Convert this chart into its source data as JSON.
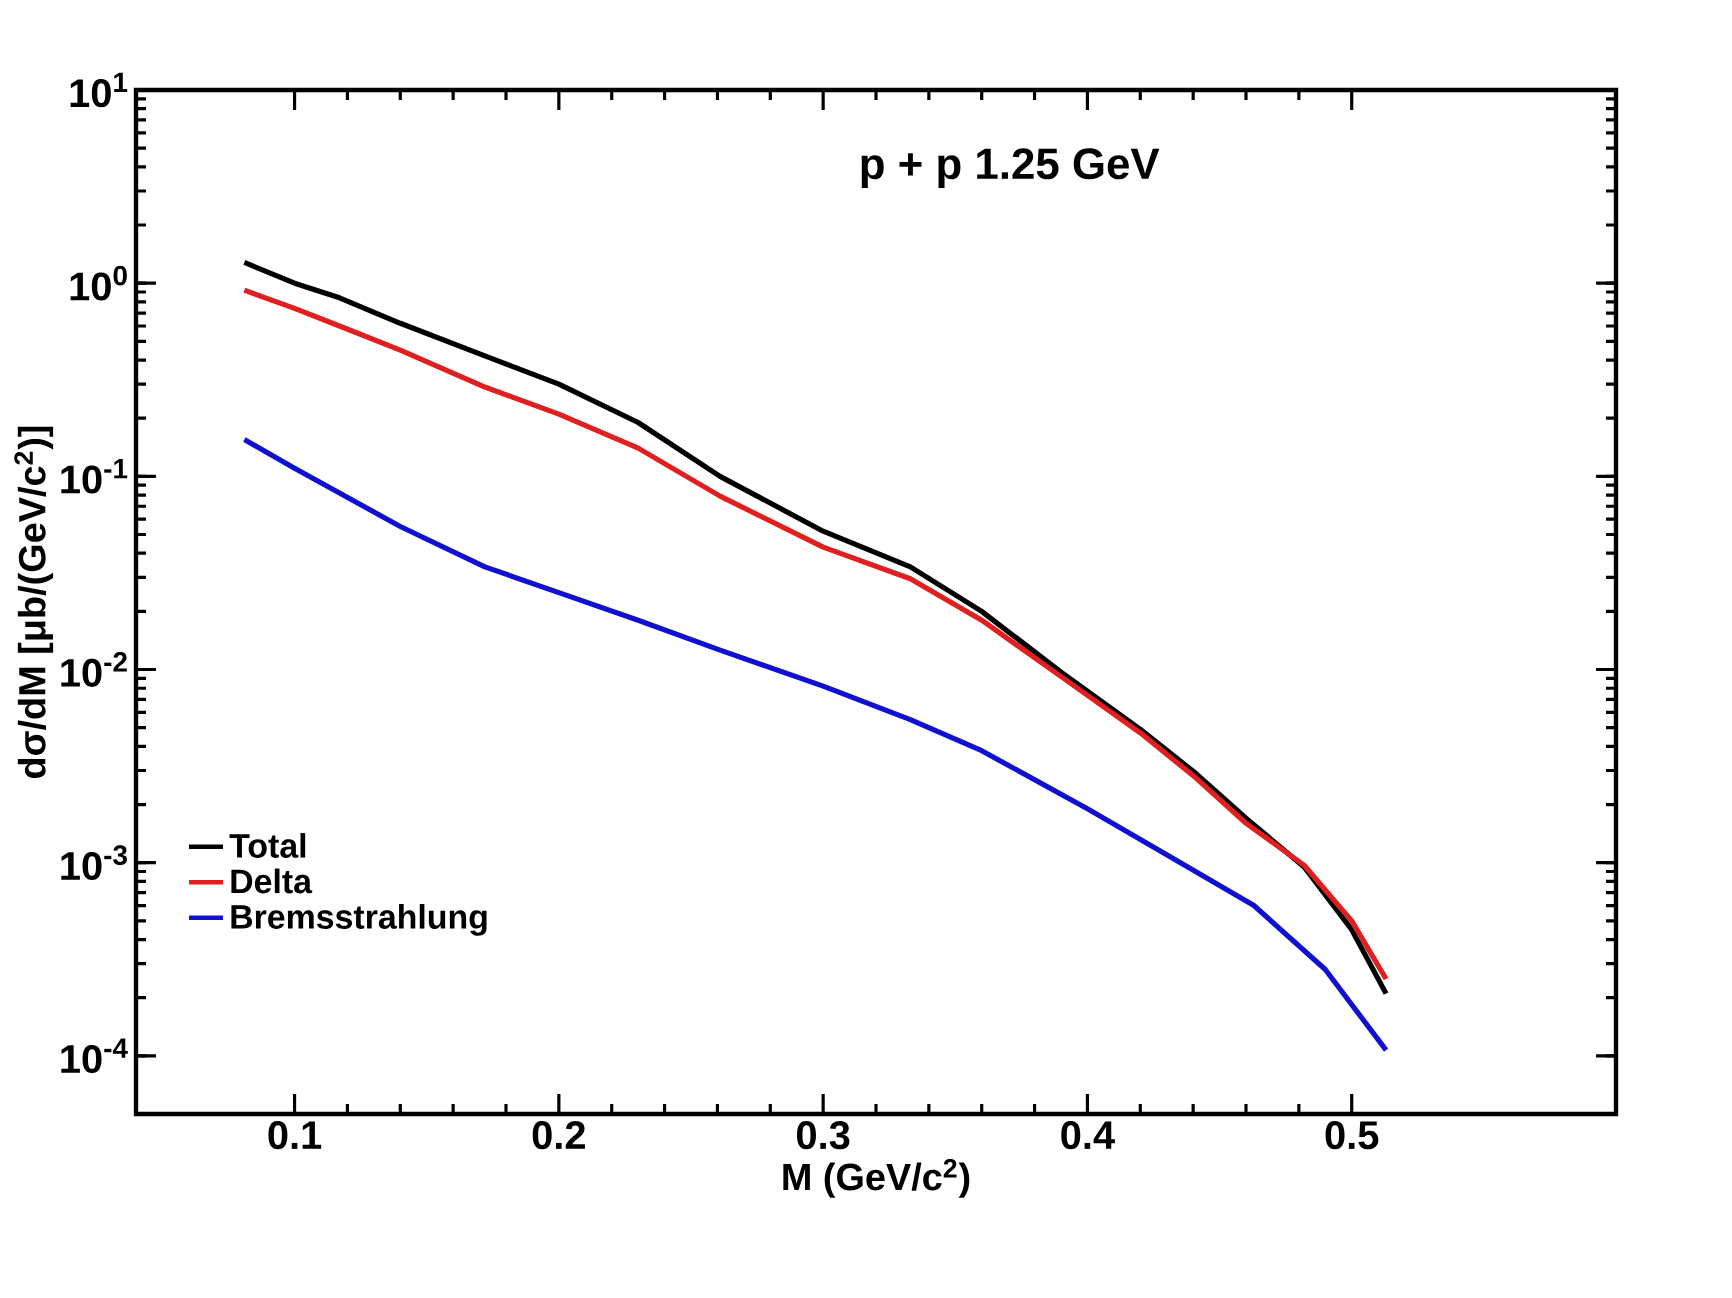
{
  "chart_data": {
    "type": "line",
    "xlabel": "M (GeV/c$^{2}$)",
    "ylabel": "dσ/dM [μb/(GeV/c$^{2}$)]",
    "annotations": [
      "p + p   1.25 GeV"
    ],
    "log": "y",
    "xlim": [
      0.04,
      0.6
    ],
    "ylim": [
      5e-05,
      10
    ],
    "xticks": [
      0.1,
      0.2,
      0.3,
      0.4,
      0.5
    ],
    "yticks": [
      {
        "value": 0.0001,
        "label": "10$^{-4}$"
      },
      {
        "value": 0.001,
        "label": "10$^{-3}$"
      },
      {
        "value": 0.01,
        "label": "10$^{-2}$"
      },
      {
        "value": 0.1,
        "label": "10$^{-1}$"
      },
      {
        "value": 1,
        "label": "10$^{0}$"
      },
      {
        "value": 10,
        "label": "10$^{1}$"
      }
    ],
    "grid": false,
    "legend": "bottom left",
    "marker": "none",
    "line_style": "solid",
    "series": [
      {
        "name": "Total",
        "color": "#000000",
        "x": [
          0.081,
          0.1,
          0.117,
          0.14,
          0.172,
          0.2,
          0.23,
          0.261,
          0.3,
          0.333,
          0.36,
          0.39,
          0.42,
          0.441,
          0.46,
          0.482,
          0.5,
          0.513
        ],
        "values": [
          1.28,
          1.0,
          0.84,
          0.62,
          0.42,
          0.3,
          0.19,
          0.1,
          0.052,
          0.034,
          0.02,
          0.0097,
          0.0049,
          0.0029,
          0.0017,
          0.00095,
          0.00045,
          0.00021
        ]
      },
      {
        "name": "Delta",
        "color": "#e02020",
        "x": [
          0.081,
          0.1,
          0.117,
          0.14,
          0.172,
          0.2,
          0.23,
          0.261,
          0.3,
          0.333,
          0.36,
          0.39,
          0.42,
          0.441,
          0.46,
          0.482,
          0.5,
          0.513
        ],
        "values": [
          0.92,
          0.74,
          0.6,
          0.45,
          0.29,
          0.21,
          0.14,
          0.079,
          0.043,
          0.0295,
          0.018,
          0.0092,
          0.0047,
          0.00275,
          0.0016,
          0.00097,
          0.0005,
          0.00025
        ]
      },
      {
        "name": "Bremsstrahlung",
        "color": "#1010d0",
        "x": [
          0.081,
          0.1,
          0.117,
          0.14,
          0.172,
          0.2,
          0.23,
          0.261,
          0.3,
          0.333,
          0.36,
          0.4,
          0.43,
          0.463,
          0.49,
          0.513
        ],
        "values": [
          0.155,
          0.11,
          0.082,
          0.055,
          0.034,
          0.025,
          0.018,
          0.0126,
          0.0082,
          0.0055,
          0.0038,
          0.0019,
          0.0011,
          0.0006,
          0.00028,
          0.000107
        ]
      }
    ]
  }
}
